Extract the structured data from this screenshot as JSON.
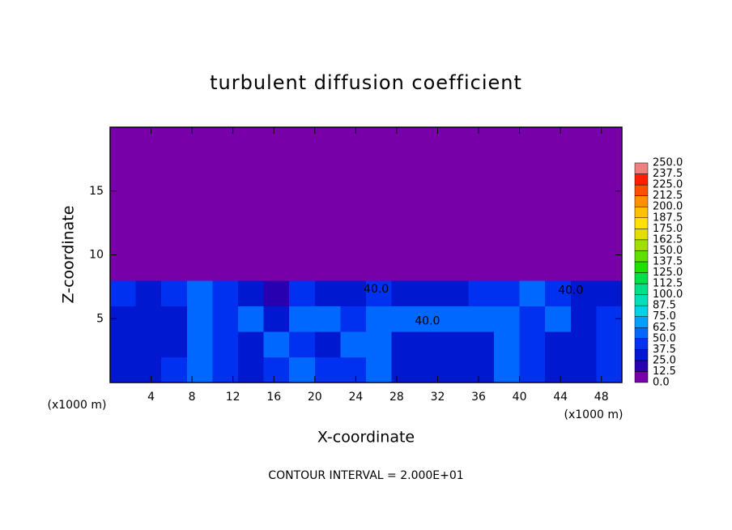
{
  "chart_data": {
    "type": "contour",
    "title": "turbulent diffusion coefficient",
    "xlabel": "X-coordinate",
    "ylabel": "Z-coordinate",
    "xunit": "(x1000 m)",
    "annotation": "CONTOUR INTERVAL = 2.000E+01",
    "xlim": [
      0,
      50
    ],
    "ylim": [
      0,
      20
    ],
    "xticks": [
      4,
      8,
      12,
      16,
      20,
      24,
      28,
      32,
      36,
      40,
      44,
      48
    ],
    "yticks": [
      5,
      10,
      15
    ],
    "x": [
      1.25,
      3.75,
      6.25,
      8.75,
      11.25,
      13.75,
      16.25,
      18.75,
      21.25,
      23.75,
      26.25,
      28.75,
      31.25,
      33.75,
      36.25,
      38.75,
      41.25,
      43.75,
      46.25,
      48.75
    ],
    "y": [
      1,
      3,
      5,
      7,
      9,
      11,
      13,
      15,
      17,
      19
    ],
    "z": [
      [
        30,
        35,
        45,
        50,
        40,
        35,
        40,
        50,
        45,
        40,
        60,
        35,
        30,
        30,
        35,
        60,
        40,
        35,
        30,
        45
      ],
      [
        35,
        30,
        35,
        60,
        40,
        30,
        60,
        45,
        30,
        55,
        60,
        30,
        30,
        30,
        30,
        55,
        40,
        30,
        35,
        40
      ],
      [
        35,
        30,
        30,
        55,
        45,
        50,
        35,
        60,
        55,
        45,
        60,
        55,
        55,
        55,
        60,
        55,
        45,
        60,
        30,
        40
      ],
      [
        40,
        35,
        45,
        50,
        40,
        30,
        20,
        45,
        35,
        30,
        40,
        35,
        30,
        35,
        40,
        45,
        50,
        40,
        35,
        30
      ],
      [
        0,
        0,
        10,
        5,
        0,
        0,
        0,
        0,
        0,
        0,
        0,
        0,
        0,
        0,
        0,
        0,
        0,
        0,
        0,
        0
      ],
      [
        0,
        0,
        0,
        0,
        0,
        0,
        0,
        0,
        0,
        0,
        0,
        0,
        0,
        0,
        0,
        0,
        0,
        0,
        0,
        0
      ],
      [
        0,
        0,
        0,
        0,
        0,
        0,
        0,
        0,
        0,
        0,
        0,
        0,
        0,
        0,
        0,
        0,
        0,
        0,
        0,
        0
      ],
      [
        0,
        0,
        0,
        0,
        0,
        0,
        0,
        0,
        0,
        0,
        0,
        0,
        0,
        0,
        0,
        0,
        0,
        0,
        0,
        0
      ],
      [
        0,
        0,
        0,
        0,
        0,
        0,
        0,
        0,
        0,
        0,
        0,
        0,
        0,
        0,
        0,
        0,
        0,
        0,
        0,
        0
      ],
      [
        0,
        0,
        0,
        0,
        0,
        0,
        0,
        0,
        0,
        0,
        0,
        0,
        0,
        0,
        0,
        0,
        0,
        0,
        0,
        0
      ]
    ],
    "contour_labels": [
      {
        "value": 40,
        "label": "40.0",
        "x": 26,
        "y": 7.3
      },
      {
        "value": 40,
        "label": "40.0",
        "x": 31,
        "y": 4.8
      },
      {
        "value": 40,
        "label": "40.0",
        "x": 45,
        "y": 7.2
      }
    ],
    "colorbar": {
      "levels": [
        {
          "value": 0,
          "label": "0.0"
        },
        {
          "value": 12.5,
          "label": "12.5"
        },
        {
          "value": 25,
          "label": "25.0"
        },
        {
          "value": 37.5,
          "label": "37.5"
        },
        {
          "value": 50,
          "label": "50.0"
        },
        {
          "value": 62.5,
          "label": "62.5"
        },
        {
          "value": 75,
          "label": "75.0"
        },
        {
          "value": 87.5,
          "label": "87.5"
        },
        {
          "value": 100,
          "label": "100.0"
        },
        {
          "value": 112.5,
          "label": "112.5"
        },
        {
          "value": 125,
          "label": "125.0"
        },
        {
          "value": 137.5,
          "label": "137.5"
        },
        {
          "value": 150,
          "label": "150.0"
        },
        {
          "value": 162.5,
          "label": "162.5"
        },
        {
          "value": 175,
          "label": "175.0"
        },
        {
          "value": 187.5,
          "label": "187.5"
        },
        {
          "value": 200,
          "label": "200.0"
        },
        {
          "value": 212.5,
          "label": "212.5"
        },
        {
          "value": 225,
          "label": "225.0"
        },
        {
          "value": 237.5,
          "label": "237.5"
        },
        {
          "value": 250,
          "label": "250.0"
        }
      ],
      "colors": [
        "#7800a8",
        "#2800b0",
        "#0018d0",
        "#0030f0",
        "#0068ff",
        "#00a0ff",
        "#00d0e8",
        "#00e0b8",
        "#00e088",
        "#00e048",
        "#20e000",
        "#60e000",
        "#a0e000",
        "#e0e000",
        "#ffe000",
        "#ffc000",
        "#ff9000",
        "#ff5000",
        "#ff2000",
        "#f08080"
      ]
    }
  }
}
